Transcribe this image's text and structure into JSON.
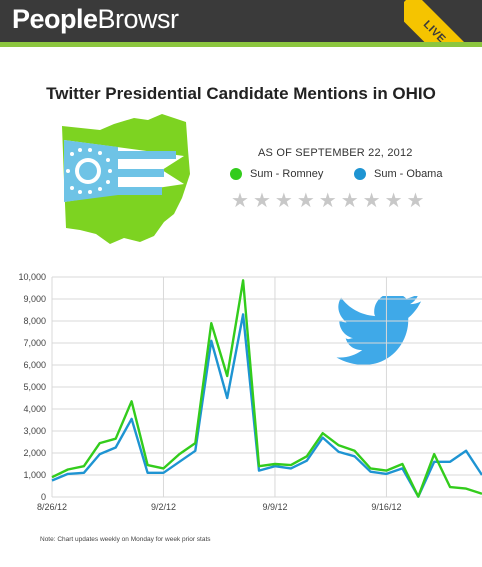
{
  "brand": {
    "name_bold": "People",
    "name_light": "Browsr"
  },
  "ribbon_label": "LIVE CHART",
  "as_of": "AS OF SEPTEMBER 22, 2012",
  "rating_stars": 9,
  "note": "Note: Chart updates weekly on Monday for week prior stats",
  "colors": {
    "romney": "#33cc1c",
    "obama": "#1e94d2",
    "grid": "#d9d9d9",
    "header": "#3a3a3a",
    "accent": "#8cc63f"
  },
  "chart_data": {
    "type": "line",
    "title": "Twitter Presidential Candidate Mentions in OHIO",
    "x": [
      "8/26/12",
      "8/27/12",
      "8/28/12",
      "8/29/12",
      "8/30/12",
      "8/31/12",
      "9/1/12",
      "9/2/12",
      "9/3/12",
      "9/4/12",
      "9/5/12",
      "9/6/12",
      "9/7/12",
      "9/8/12",
      "9/9/12",
      "9/10/12",
      "9/11/12",
      "9/12/12",
      "9/13/12",
      "9/14/12",
      "9/15/12",
      "9/16/12",
      "9/17/12",
      "9/18/12",
      "9/19/12",
      "9/20/12",
      "9/21/12",
      "9/22/12"
    ],
    "xtick_labels": [
      "8/26/12",
      "9/2/12",
      "9/9/12",
      "9/16/12"
    ],
    "xtick_index": [
      0,
      7,
      14,
      21
    ],
    "ylim": [
      0,
      10000
    ],
    "yticks": [
      "0",
      "1,000",
      "2,000",
      "3,000",
      "4,000",
      "5,000",
      "6,000",
      "7,000",
      "8,000",
      "9,000",
      "10,000"
    ],
    "ytick_values": [
      0,
      1000,
      2000,
      3000,
      4000,
      5000,
      6000,
      7000,
      8000,
      9000,
      10000
    ],
    "series": [
      {
        "name": "Sum - Romney",
        "values": [
          900,
          1250,
          1400,
          2450,
          2650,
          4350,
          1450,
          1300,
          1950,
          2450,
          7900,
          5500,
          9850,
          1400,
          1500,
          1450,
          1850,
          2900,
          2350,
          2100,
          1300,
          1200,
          1500,
          20,
          1950,
          450,
          380,
          150
        ]
      },
      {
        "name": "Sum - Obama",
        "values": [
          750,
          1050,
          1100,
          1950,
          2250,
          3550,
          1100,
          1100,
          1600,
          2100,
          7100,
          4500,
          8300,
          1200,
          1400,
          1300,
          1650,
          2700,
          2050,
          1850,
          1150,
          1050,
          1300,
          20,
          1600,
          1600,
          2100,
          1000
        ]
      }
    ]
  }
}
